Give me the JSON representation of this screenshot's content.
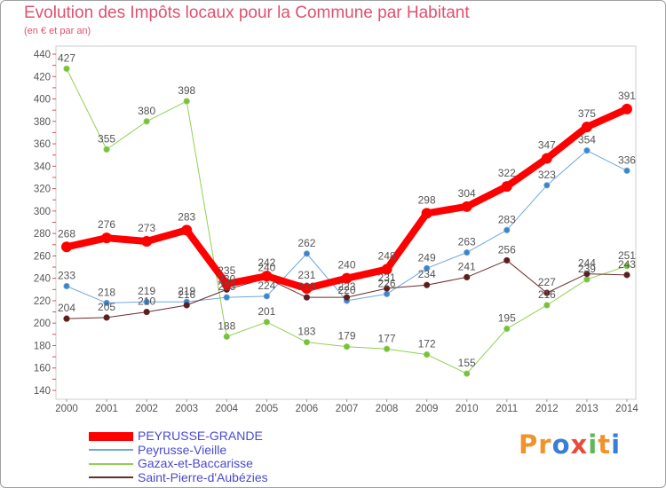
{
  "chart_data": {
    "type": "line",
    "title": "Evolution des Impôts locaux pour la Commune par Habitant",
    "subtitle": "(en € et par an)",
    "xlabel": "",
    "ylabel": "",
    "x": [
      "2000",
      "2001",
      "2002",
      "2003",
      "2004",
      "2005",
      "2006",
      "2007",
      "2008",
      "2009",
      "2010",
      "2011",
      "2012",
      "2013",
      "2014"
    ],
    "ylim": [
      140,
      440
    ],
    "yticks": [
      140,
      160,
      180,
      200,
      220,
      240,
      260,
      280,
      300,
      320,
      340,
      360,
      380,
      400,
      420,
      440
    ],
    "grid": false,
    "legend_position": "bottom-left",
    "series": [
      {
        "name": "PEYRUSSE-GRANDE",
        "color": "#ff0000",
        "marker_color": "#ff0000",
        "values": [
          268,
          276,
          273,
          283,
          235,
          242,
          231,
          240,
          248,
          298,
          304,
          322,
          347,
          375,
          391
        ]
      },
      {
        "name": "Peyrusse-Vieille",
        "color": "#6fa8dc",
        "marker_color": "#3d85c6",
        "values": [
          233,
          218,
          219,
          219,
          223,
          224,
          262,
          220,
          226,
          249,
          263,
          283,
          323,
          354,
          336
        ]
      },
      {
        "name": "Gazax-et-Baccarisse",
        "color": "#92d050",
        "marker_color": "#76c043",
        "values": [
          427,
          355,
          380,
          398,
          188,
          201,
          183,
          179,
          177,
          172,
          155,
          195,
          216,
          239,
          251
        ]
      },
      {
        "name": "Saint-Pierre-d'Aubézies",
        "color": "#6b2b2b",
        "marker_color": "#5a1e1e",
        "values": [
          204,
          205,
          210,
          216,
          230,
          240,
          223,
          223,
          231,
          234,
          241,
          256,
          227,
          244,
          243
        ]
      }
    ]
  },
  "logo": {
    "text": "Proxiti",
    "letter_colors": [
      "#f0932b",
      "#f0932b",
      "#3a7dd8",
      "#e84d3c",
      "#5cb85c",
      "#f0932b",
      "#3a7dd8"
    ]
  },
  "colors": {
    "title": "#e0506e",
    "legend_text": "#4a4ad0",
    "data_label": "#555555",
    "tick_label": "#555555",
    "axis": "#cccccc",
    "y_tick_mark": "#e05050"
  }
}
